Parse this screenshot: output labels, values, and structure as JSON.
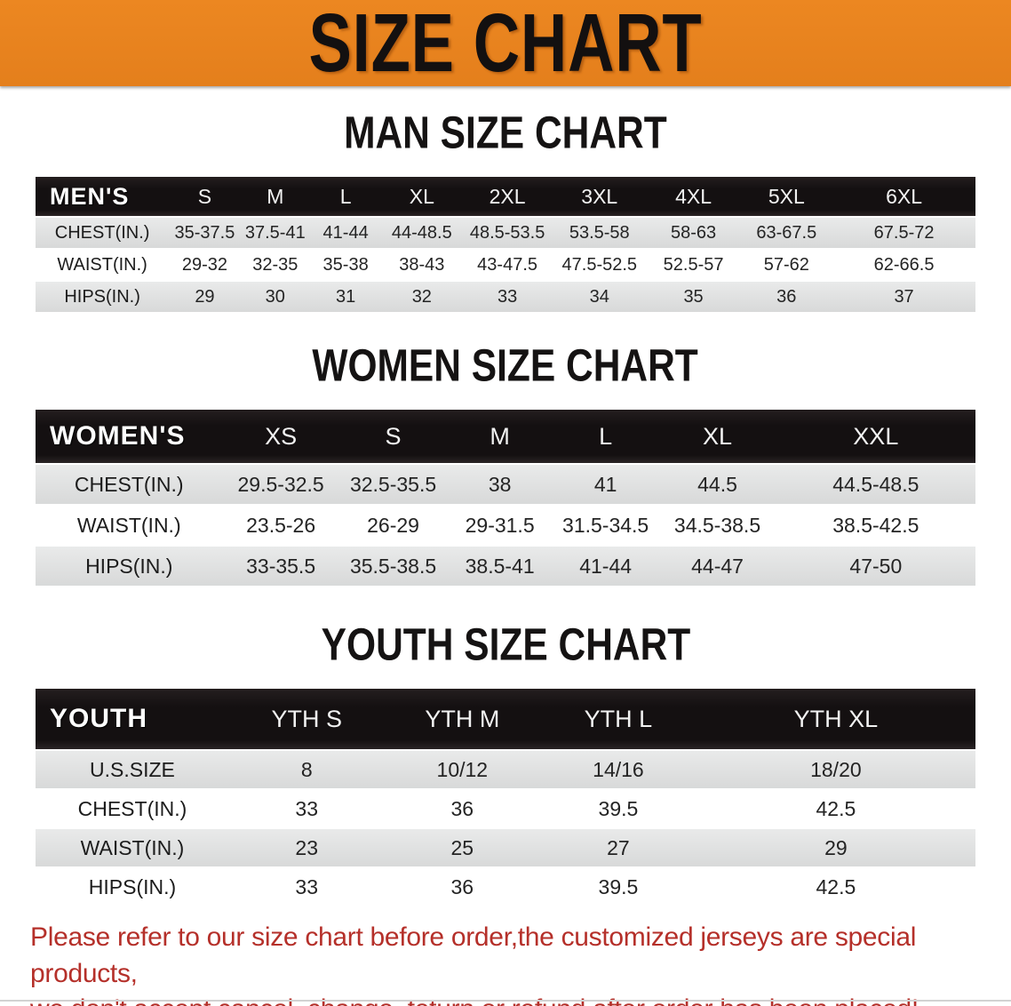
{
  "banner": {
    "title": "SIZE CHART"
  },
  "colors": {
    "banner_bg": "#e8831f",
    "header_bar": "#141011",
    "stripe_row": "#dcdddd",
    "note_text": "#b5302a"
  },
  "sections": [
    {
      "heading": "MAN SIZE CHART",
      "table": {
        "header_label": "MEN'S",
        "columns": [
          "S",
          "M",
          "L",
          "XL",
          "2XL",
          "3XL",
          "4XL",
          "5XL",
          "6XL"
        ],
        "rows": [
          {
            "label": "CHEST(IN.)",
            "values": [
              "35-37.5",
              "37.5-41",
              "41-44",
              "44-48.5",
              "48.5-53.5",
              "53.5-58",
              "58-63",
              "63-67.5",
              "67.5-72"
            ]
          },
          {
            "label": "WAIST(IN.)",
            "values": [
              "29-32",
              "32-35",
              "35-38",
              "38-43",
              "43-47.5",
              "47.5-52.5",
              "52.5-57",
              "57-62",
              "62-66.5"
            ]
          },
          {
            "label": "HIPS(IN.)",
            "values": [
              "29",
              "30",
              "31",
              "32",
              "33",
              "34",
              "35",
              "36",
              "37"
            ]
          }
        ]
      }
    },
    {
      "heading": "WOMEN SIZE CHART",
      "table": {
        "header_label": "WOMEN'S",
        "columns": [
          "XS",
          "S",
          "M",
          "L",
          "XL",
          "XXL"
        ],
        "rows": [
          {
            "label": "CHEST(IN.)",
            "values": [
              "29.5-32.5",
              "32.5-35.5",
              "38",
              "41",
              "44.5",
              "44.5-48.5"
            ]
          },
          {
            "label": "WAIST(IN.)",
            "values": [
              "23.5-26",
              "26-29",
              "29-31.5",
              "31.5-34.5",
              "34.5-38.5",
              "38.5-42.5"
            ]
          },
          {
            "label": "HIPS(IN.)",
            "values": [
              "33-35.5",
              "35.5-38.5",
              "38.5-41",
              "41-44",
              "44-47",
              "47-50"
            ]
          }
        ]
      }
    },
    {
      "heading": "YOUTH SIZE CHART",
      "table": {
        "header_label": "YOUTH",
        "columns": [
          "YTH S",
          "YTH M",
          "YTH L",
          "YTH XL"
        ],
        "rows": [
          {
            "label": "U.S.SIZE",
            "values": [
              "8",
              "10/12",
              "14/16",
              "18/20"
            ]
          },
          {
            "label": "CHEST(IN.)",
            "values": [
              "33",
              "36",
              "39.5",
              "42.5"
            ]
          },
          {
            "label": "WAIST(IN.)",
            "values": [
              "23",
              "25",
              "27",
              "29"
            ]
          },
          {
            "label": "HIPS(IN.)",
            "values": [
              "33",
              "36",
              "39.5",
              "42.5"
            ]
          }
        ]
      }
    }
  ],
  "note": {
    "line1": "Please refer to our size chart before order,the customized jerseys are special products,",
    "line2": "we don't accept cancel, change, teturn or refund after order has been placed!"
  }
}
